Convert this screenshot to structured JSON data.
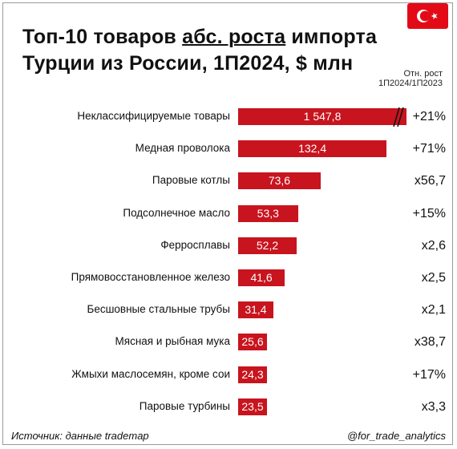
{
  "header": {
    "title_part1": "Топ-10 товаров ",
    "title_underlined": "абс. роста",
    "title_part2": " импорта",
    "title_line2": "Турции из России, 1П2024, $ млн",
    "growth_header_line1": "Отн. рост",
    "growth_header_line2": "1П2024/1П2023",
    "flag_icon": "turkey-flag-icon"
  },
  "colors": {
    "bar": "#c8141e",
    "text": "#111111"
  },
  "chart_data": {
    "type": "bar",
    "orientation": "horizontal",
    "unit": "$ млн",
    "axis_break_on_first_bar": true,
    "categories": [
      "Неклассифицируемые товары",
      "Медная проволока",
      "Паровые котлы",
      "Подсолнечное масло",
      "Ферросплавы",
      "Прямовосстановленное железо",
      "Бесшовные стальные трубы",
      "Мясная и рыбная мука",
      "Жмыхи масло­семян, кроме сои",
      "Паровые турбины"
    ],
    "values": [
      1547.8,
      132.4,
      73.6,
      53.3,
      52.2,
      41.6,
      31.4,
      25.6,
      24.3,
      23.5
    ],
    "value_labels": [
      "1 547,8",
      "132,4",
      "73,6",
      "53,3",
      "52,2",
      "41,6",
      "31,4",
      "25,6",
      "24,3",
      "23,5"
    ],
    "growth": [
      "+21%",
      "+71%",
      "x56,7",
      "+15%",
      "x2,6",
      "x2,5",
      "x2,1",
      "x38,7",
      "+17%",
      "x3,3"
    ]
  },
  "footer": {
    "source": "Источник: данные trademap",
    "handle": "@for_trade_analytics"
  }
}
